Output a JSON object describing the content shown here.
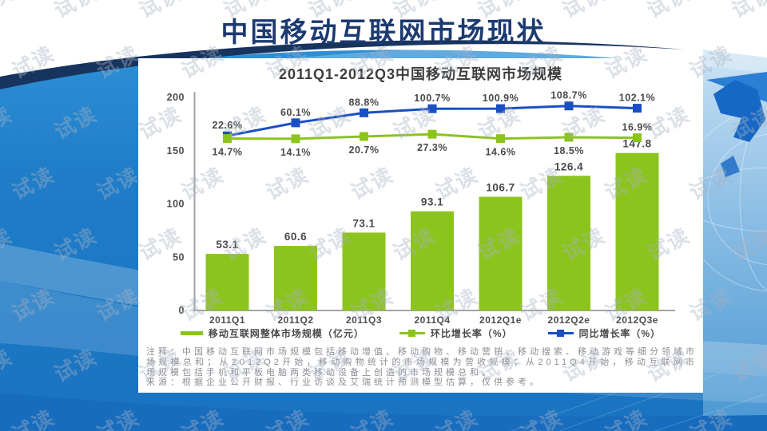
{
  "slide": {
    "title": "中国移动互联网市场现状",
    "watermark": "试读"
  },
  "chart_data": {
    "type": "bar+line combo",
    "title": "2011Q1-2012Q3中国移动互联网市场规模",
    "categories": [
      "2011Q1",
      "2011Q2",
      "2011Q3",
      "2011Q4",
      "2012Q1e",
      "2012Q2e",
      "2012Q3e"
    ],
    "series": [
      {
        "name": "移动互联网整体市场规模（亿元）",
        "type": "bar",
        "axis": "left",
        "color": "#8cc41e",
        "values": [
          53.1,
          60.6,
          73.1,
          93.1,
          106.7,
          126.4,
          147.8
        ],
        "labels": [
          "53.1",
          "60.6",
          "73.1",
          "93.1",
          "106.7",
          "126.4",
          "147.8"
        ]
      },
      {
        "name": "环比增长率（%）",
        "type": "line",
        "axis": "percent",
        "color": "#8cc41e",
        "values": [
          14.7,
          14.1,
          20.7,
          27.3,
          14.6,
          18.5,
          16.9
        ],
        "labels": [
          "14.7%",
          "14.1%",
          "20.7%",
          "27.3%",
          "14.6%",
          "18.5%",
          "16.9%"
        ]
      },
      {
        "name": "同比增长率（%）",
        "type": "line",
        "axis": "percent",
        "color": "#1a4fc3",
        "values": [
          22.6,
          60.1,
          88.8,
          100.7,
          100.9,
          108.7,
          102.1
        ],
        "labels": [
          "22.6%",
          "60.1%",
          "88.8%",
          "100.7%",
          "100.9%",
          "108.7%",
          "102.1%"
        ]
      }
    ],
    "left_axis": {
      "min": 0,
      "max": 200,
      "ticks": [
        0,
        50,
        100,
        150,
        200
      ]
    },
    "grid": false,
    "legend_position": "bottom"
  },
  "panel": {
    "note_annotation": "注释：中国移动互联网市场规模包括移动增值、移动购物、移动营销、移动搜索、移动游戏等细分领域市场规模总和；从2012Q2开始，移动购物统计的市场规模为营收规模；从2011Q4开始，移动互联网市场规模包括手机和平板电脑两类移动设备上创造的市场规模总和。",
    "note_source": "来源：根据企业公开财报、行业访谈及艾瑞统计预测模型估算，仅供参考。"
  }
}
